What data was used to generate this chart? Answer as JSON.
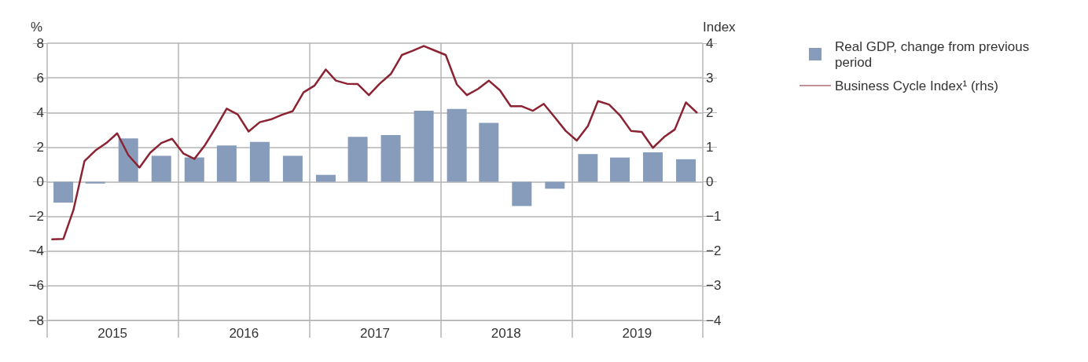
{
  "chart_data": {
    "type": "bar",
    "ylabel": "%",
    "y2label": "Index",
    "xlim": [
      "2015-01-01",
      "2020-01-01"
    ],
    "xticks": [
      {
        "value": "2015-01-01",
        "label": null
      },
      {
        "value": "2015-07-02",
        "label": "2015"
      },
      {
        "value": "2016-01-01",
        "label": null
      },
      {
        "value": "2016-07-02",
        "label": "2016"
      },
      {
        "value": "2017-01-01",
        "label": null
      },
      {
        "value": "2017-07-02",
        "label": "2017"
      },
      {
        "value": "2018-01-01",
        "label": null
      },
      {
        "value": "2018-07-02",
        "label": "2018"
      },
      {
        "value": "2019-01-01",
        "label": null
      },
      {
        "value": "2019-07-02",
        "label": "2019"
      },
      {
        "value": "2020-01-01",
        "label": null
      }
    ],
    "ylim": [
      -8,
      8
    ],
    "yticks": [
      -8,
      -6,
      -4,
      -2,
      0,
      2,
      4,
      6,
      8
    ],
    "y2lim": [
      -4,
      4
    ],
    "y2ticks": [
      -4,
      -3,
      -2,
      -1,
      0,
      1,
      2,
      3,
      4
    ],
    "grid": true,
    "legend": "right",
    "series": [
      {
        "name": "Real GDP, change from previous period",
        "color": "#879cbb",
        "x": [
          "2015-02-15",
          "2015-05-15",
          "2015-08-15",
          "2015-11-15",
          "2016-02-15",
          "2016-05-15",
          "2016-08-15",
          "2016-11-15",
          "2017-02-15",
          "2017-05-15",
          "2017-08-15",
          "2017-11-15",
          "2018-02-15",
          "2018-05-15",
          "2018-08-15",
          "2018-11-15",
          "2019-02-15",
          "2019-05-15",
          "2019-08-15",
          "2019-11-15"
        ],
        "values": [
          -1.2,
          -0.1,
          2.5,
          1.5,
          1.4,
          2.1,
          2.3,
          1.5,
          0.4,
          2.6,
          2.7,
          4.1,
          4.2,
          3.4,
          -1.4,
          -0.4,
          1.6,
          1.4,
          1.7,
          1.3
        ]
      },
      {
        "type": "line",
        "name": "Business Cycle Index¹ (rhs)",
        "color": "#8b2332",
        "axis": "y2",
        "marker": "none",
        "line_style": "solid",
        "x": [
          "2015-01-15",
          "2015-02-15",
          "2015-03-15",
          "2015-04-15",
          "2015-05-15",
          "2015-06-15",
          "2015-07-15",
          "2015-08-15",
          "2015-09-15",
          "2015-10-15",
          "2015-11-15",
          "2015-12-15",
          "2016-01-15",
          "2016-02-15",
          "2016-03-15",
          "2016-04-15",
          "2016-05-15",
          "2016-06-15",
          "2016-07-15",
          "2016-08-15",
          "2016-09-15",
          "2016-10-15",
          "2016-11-15",
          "2016-12-15",
          "2017-01-15",
          "2017-02-15",
          "2017-03-15",
          "2017-04-15",
          "2017-05-15",
          "2017-06-15",
          "2017-07-15",
          "2017-08-15",
          "2017-09-15",
          "2017-10-15",
          "2017-11-15",
          "2017-12-15",
          "2018-01-15",
          "2018-02-15",
          "2018-03-15",
          "2018-04-15",
          "2018-05-15",
          "2018-06-15",
          "2018-07-15",
          "2018-08-15",
          "2018-09-15",
          "2018-10-15",
          "2018-11-15",
          "2018-12-15",
          "2019-01-15",
          "2019-02-15",
          "2019-03-15",
          "2019-04-15",
          "2019-05-15",
          "2019-06-15",
          "2019-07-15",
          "2019-08-15",
          "2019-09-15",
          "2019-10-15",
          "2019-11-15",
          "2019-12-15"
        ],
        "values": [
          -1.66,
          -1.65,
          -0.82,
          0.6,
          0.9,
          1.12,
          1.4,
          0.77,
          0.41,
          0.84,
          1.12,
          1.24,
          0.82,
          0.66,
          1.05,
          1.57,
          2.11,
          1.94,
          1.45,
          1.72,
          1.8,
          1.93,
          2.04,
          2.58,
          2.78,
          3.24,
          2.92,
          2.83,
          2.82,
          2.5,
          2.83,
          3.11,
          3.66,
          3.78,
          3.92,
          3.79,
          3.66,
          2.81,
          2.5,
          2.68,
          2.92,
          2.64,
          2.18,
          2.18,
          2.05,
          2.25,
          1.86,
          1.47,
          1.19,
          1.61,
          2.33,
          2.23,
          1.92,
          1.47,
          1.44,
          0.98,
          1.29,
          1.51,
          2.29,
          2.0
        ]
      }
    ]
  }
}
